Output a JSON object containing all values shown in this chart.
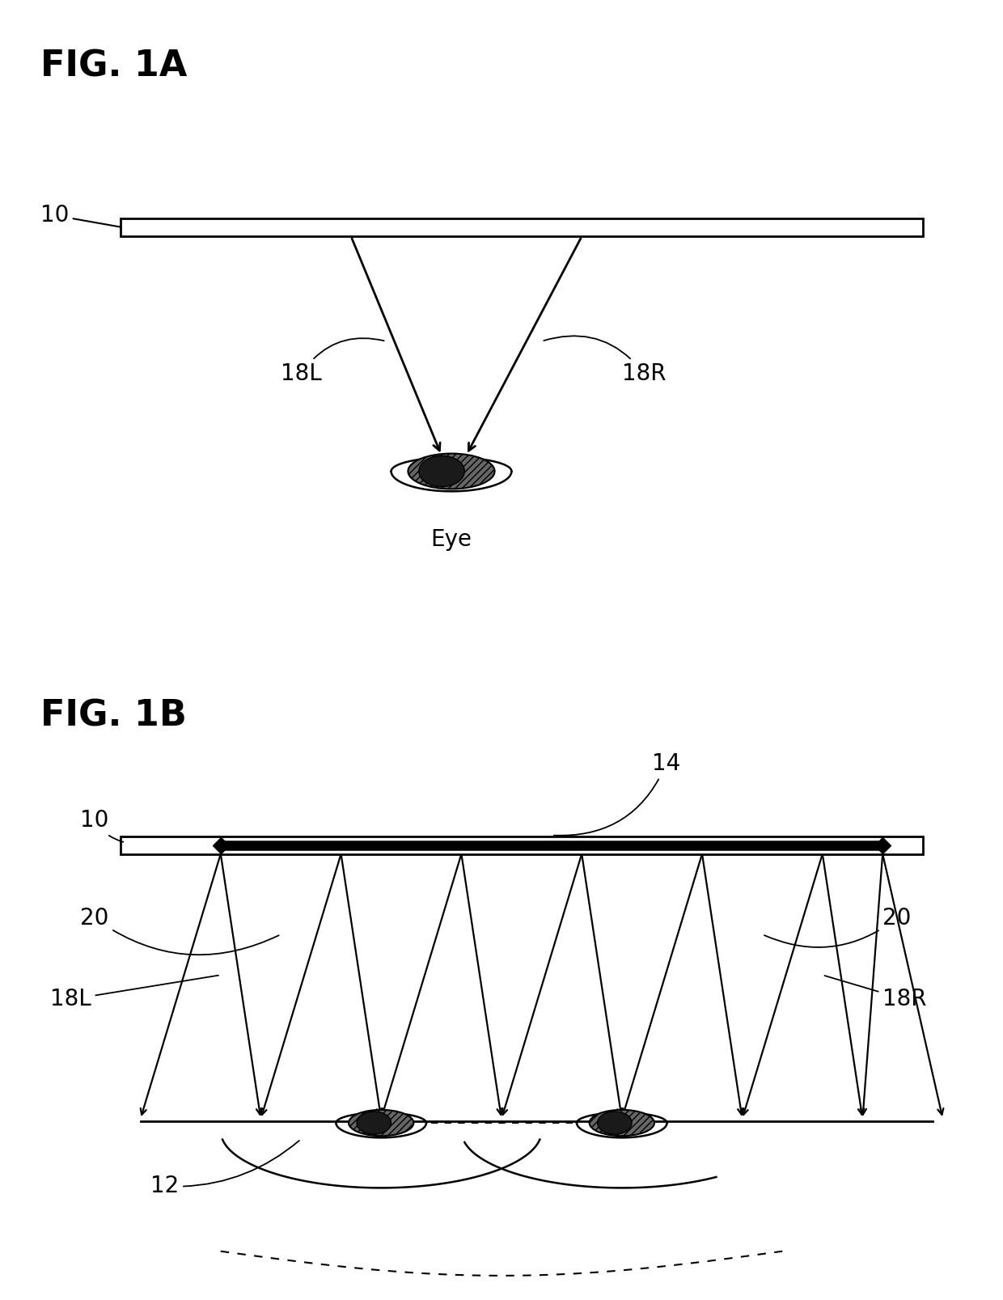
{
  "fig_title_A": "FIG. 1A",
  "fig_title_B": "FIG. 1B",
  "label_10": "10",
  "label_14": "14",
  "label_18L_a": "18L",
  "label_18R_a": "18R",
  "label_eye": "Eye",
  "label_12": "12",
  "label_20L": "20",
  "label_20R": "20",
  "label_18L_b": "18L",
  "label_18R_b": "18R",
  "bg_color": "#ffffff",
  "line_color": "#000000",
  "fontsize_title": 32,
  "fontsize_label": 20
}
